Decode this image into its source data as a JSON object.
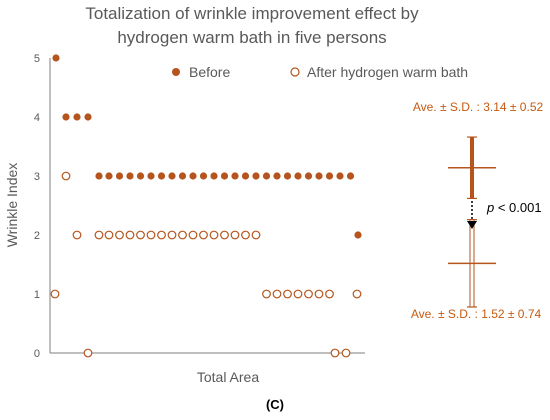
{
  "chart_data": {
    "type": "scatter",
    "title": "Totalization of wrinkle improvement effect by hydrogen warm bath in five persons",
    "title_lines": [
      "Totalization of wrinkle improvement effect by",
      "hydrogen warm bath in five persons"
    ],
    "ylabel": "Wrinkle Index",
    "xlabel": "Total Area",
    "ylim": [
      0,
      5
    ],
    "yticks": [
      0,
      1,
      2,
      3,
      4,
      5
    ],
    "grid": false,
    "legend_position": "top",
    "panel_label": "(C)",
    "colors": {
      "accent": "#b5541d",
      "text": "#595959",
      "axis": "#7f7f7f"
    },
    "series": [
      {
        "name": "Before",
        "marker": "filled-circle",
        "points": [
          {
            "x": 1,
            "y": 5
          },
          {
            "x": 2,
            "y": 4
          },
          {
            "x": 3,
            "y": 4
          },
          {
            "x": 4,
            "y": 4
          },
          {
            "x": 5,
            "y": 3
          },
          {
            "x": 6,
            "y": 3
          },
          {
            "x": 7,
            "y": 3
          },
          {
            "x": 8,
            "y": 3
          },
          {
            "x": 9,
            "y": 3
          },
          {
            "x": 10,
            "y": 3
          },
          {
            "x": 11,
            "y": 3
          },
          {
            "x": 12,
            "y": 3
          },
          {
            "x": 13,
            "y": 3
          },
          {
            "x": 14,
            "y": 3
          },
          {
            "x": 15,
            "y": 3
          },
          {
            "x": 16,
            "y": 3
          },
          {
            "x": 17,
            "y": 3
          },
          {
            "x": 18,
            "y": 3
          },
          {
            "x": 19,
            "y": 3
          },
          {
            "x": 20,
            "y": 3
          },
          {
            "x": 21,
            "y": 3
          },
          {
            "x": 22,
            "y": 3
          },
          {
            "x": 23,
            "y": 3
          },
          {
            "x": 24,
            "y": 3
          },
          {
            "x": 25,
            "y": 3
          },
          {
            "x": 26,
            "y": 3
          },
          {
            "x": 27,
            "y": 3
          },
          {
            "x": 28,
            "y": 3
          },
          {
            "x": 29,
            "y": 3
          },
          {
            "x": 30,
            "y": 2
          }
        ]
      },
      {
        "name": "After hydrogen warm bath",
        "marker": "open-circle",
        "points": [
          {
            "x": 1,
            "y": 1
          },
          {
            "x": 2,
            "y": 3
          },
          {
            "x": 3,
            "y": 2
          },
          {
            "x": 4,
            "y": 0
          },
          {
            "x": 5,
            "y": 2
          },
          {
            "x": 6,
            "y": 2
          },
          {
            "x": 7,
            "y": 2
          },
          {
            "x": 8,
            "y": 2
          },
          {
            "x": 9,
            "y": 2
          },
          {
            "x": 10,
            "y": 2
          },
          {
            "x": 11,
            "y": 2
          },
          {
            "x": 12,
            "y": 2
          },
          {
            "x": 13,
            "y": 2
          },
          {
            "x": 14,
            "y": 2
          },
          {
            "x": 15,
            "y": 2
          },
          {
            "x": 16,
            "y": 2
          },
          {
            "x": 17,
            "y": 2
          },
          {
            "x": 18,
            "y": 2
          },
          {
            "x": 19,
            "y": 2
          },
          {
            "x": 20,
            "y": 2
          },
          {
            "x": 21,
            "y": 1
          },
          {
            "x": 22,
            "y": 1
          },
          {
            "x": 23,
            "y": 1
          },
          {
            "x": 24,
            "y": 1
          },
          {
            "x": 25,
            "y": 1
          },
          {
            "x": 26,
            "y": 1
          },
          {
            "x": 27,
            "y": 1
          },
          {
            "x": 28,
            "y": 0
          },
          {
            "x": 29,
            "y": 0
          },
          {
            "x": 30,
            "y": 1
          }
        ]
      }
    ],
    "summary": {
      "before": {
        "label": "Ave. ± S.D. : 3.14 ± 0.52",
        "mean": 3.14,
        "sd": 0.52
      },
      "after": {
        "label": "Ave. ± S.D. : 1.52 ± 0.74",
        "mean": 1.52,
        "sd": 0.74
      },
      "significance": {
        "p_symbol": "p",
        "p_rest": " < 0.001"
      }
    }
  }
}
